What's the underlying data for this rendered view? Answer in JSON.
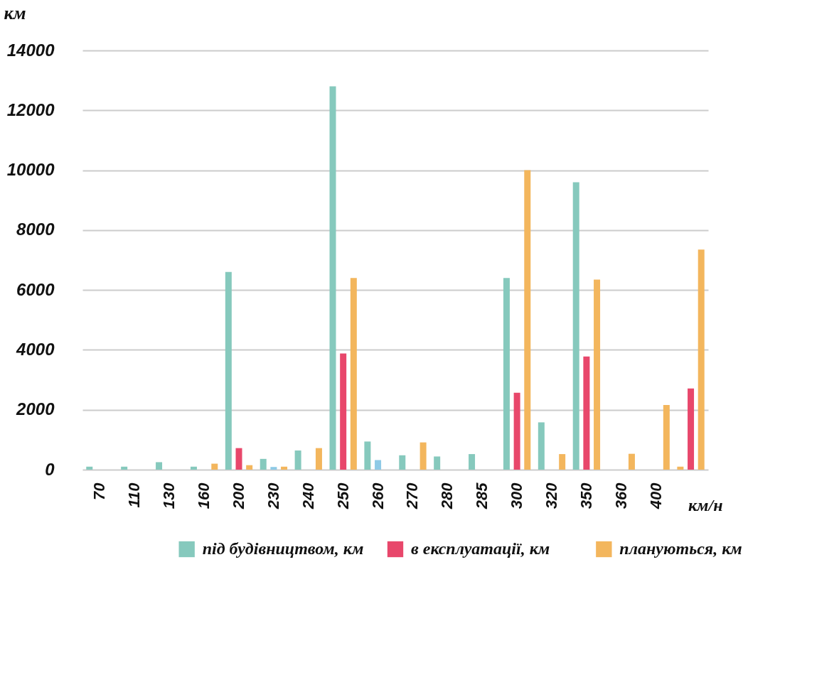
{
  "chart_data": {
    "type": "bar",
    "categories": [
      "70",
      "110",
      "130",
      "160",
      "200",
      "230",
      "240",
      "250",
      "260",
      "270",
      "280",
      "285",
      "300",
      "320",
      "350",
      "360",
      "400",
      null
    ],
    "xlabel": "км/н",
    "ylabel": "км",
    "series": [
      {
        "name": "під будівництвом, км",
        "color": "#86c9bd",
        "values": [
          100,
          100,
          250,
          100,
          6600,
          360,
          640,
          12800,
          940,
          480,
          440,
          520,
          6400,
          1580,
          9600,
          null,
          null,
          100
        ],
        "colors": [
          "#86c9bd",
          "#86c9bd",
          "#86c9bd",
          "#86c9bd",
          "#86c9bd",
          "#86c9bd",
          "#86c9bd",
          "#86c9bd",
          "#86c9bd",
          "#86c9bd",
          "#86c9bd",
          "#86c9bd",
          "#86c9bd",
          "#86c9bd",
          "#86c9bd",
          "#86c9bd",
          "#86c9bd",
          "#f3b65d"
        ]
      },
      {
        "name": "в експлуатації, км",
        "color": "#e8476b",
        "values": [
          null,
          null,
          null,
          null,
          720,
          90,
          null,
          3880,
          320,
          null,
          null,
          null,
          2570,
          null,
          3780,
          null,
          null,
          2710
        ],
        "colors": [
          "#e8476b",
          "#e8476b",
          "#e8476b",
          "#e8476b",
          "#e8476b",
          "#8ecae6",
          "#e8476b",
          "#e8476b",
          "#8ecae6",
          "#e8476b",
          "#e8476b",
          "#e8476b",
          "#e8476b",
          "#e8476b",
          "#e8476b",
          "#e8476b",
          "#e8476b",
          "#e8476b"
        ]
      },
      {
        "name": "плануються, км",
        "color": "#f3b65d",
        "values": [
          null,
          null,
          null,
          200,
          150,
          100,
          720,
          6400,
          null,
          910,
          null,
          null,
          10000,
          520,
          6350,
          530,
          2160,
          7350
        ]
      }
    ],
    "ylim": [
      0,
      14000
    ],
    "yticks": [
      0,
      2000,
      4000,
      6000,
      8000,
      10000,
      12000,
      14000
    ],
    "grid": "y",
    "legend": "bottom"
  }
}
